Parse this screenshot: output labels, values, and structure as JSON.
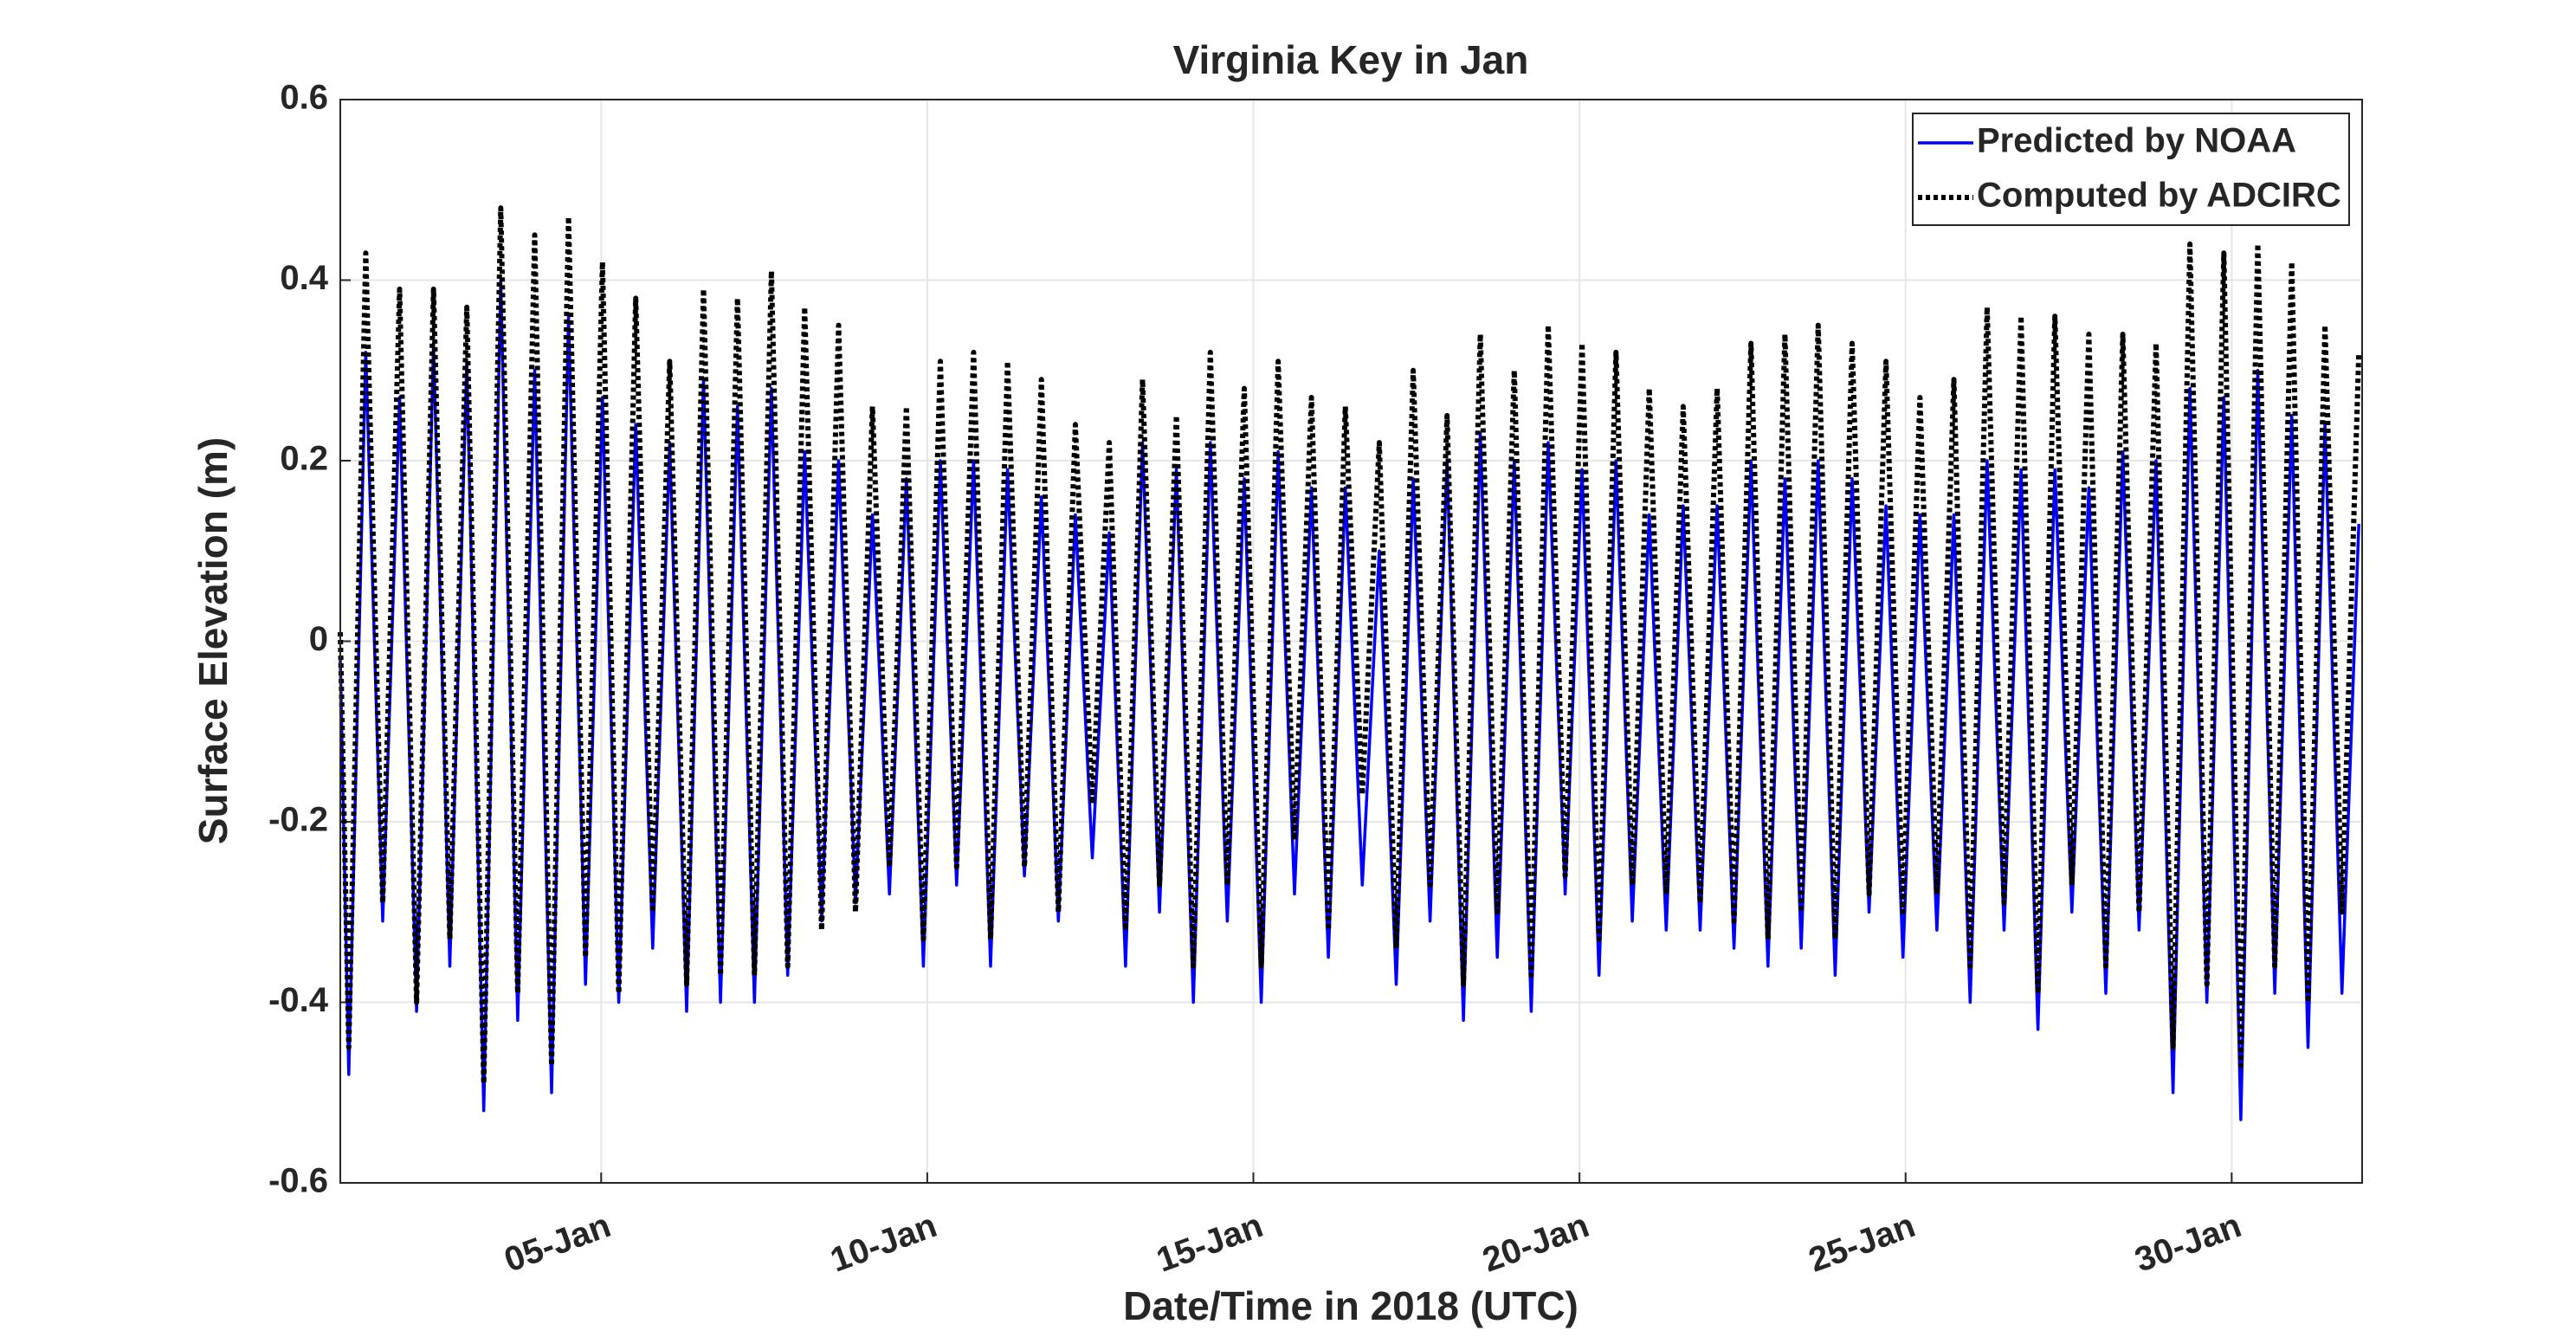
{
  "chart_data": {
    "type": "line",
    "title": "Virginia Key in Jan",
    "xlabel": "Date/Time in 2018 (UTC)",
    "ylabel": "Surface Elevation (m)",
    "xlim": [
      1,
      32
    ],
    "ylim": [
      -0.6,
      0.6
    ],
    "xticks": [
      {
        "value": 5,
        "label": "05-Jan"
      },
      {
        "value": 10,
        "label": "10-Jan"
      },
      {
        "value": 15,
        "label": "15-Jan"
      },
      {
        "value": 20,
        "label": "20-Jan"
      },
      {
        "value": 25,
        "label": "25-Jan"
      },
      {
        "value": 30,
        "label": "30-Jan"
      }
    ],
    "yticks": [
      -0.6,
      -0.4,
      -0.2,
      0,
      0.2,
      0.4,
      0.6
    ],
    "grid": true,
    "legend": "northeast",
    "x": [
      1.0,
      1.13,
      1.39,
      1.65,
      1.91,
      2.17,
      2.43,
      2.68,
      2.94,
      3.2,
      3.46,
      3.72,
      3.98,
      4.24,
      4.5,
      4.76,
      5.02,
      5.27,
      5.53,
      5.79,
      6.05,
      6.31,
      6.57,
      6.83,
      7.09,
      7.35,
      7.61,
      7.86,
      8.12,
      8.38,
      8.64,
      8.9,
      9.16,
      9.42,
      9.68,
      9.94,
      10.2,
      10.45,
      10.71,
      10.97,
      11.23,
      11.49,
      11.75,
      12.01,
      12.27,
      12.53,
      12.79,
      13.04,
      13.3,
      13.56,
      13.82,
      14.08,
      14.34,
      14.6,
      14.86,
      15.12,
      15.38,
      15.63,
      15.89,
      16.15,
      16.41,
      16.67,
      16.93,
      17.19,
      17.45,
      17.71,
      17.97,
      18.22,
      18.48,
      18.74,
      19.0,
      19.26,
      19.52,
      19.78,
      20.04,
      20.3,
      20.56,
      20.81,
      21.07,
      21.33,
      21.59,
      21.85,
      22.11,
      22.37,
      22.63,
      22.89,
      23.15,
      23.4,
      23.66,
      23.92,
      24.18,
      24.44,
      24.7,
      24.96,
      25.22,
      25.48,
      25.74,
      25.99,
      26.25,
      26.51,
      26.77,
      27.03,
      27.29,
      27.55,
      27.81,
      28.07,
      28.33,
      28.58,
      28.84,
      29.1,
      29.36,
      29.62,
      29.88,
      30.14,
      30.4,
      30.66,
      30.92,
      31.17,
      31.43,
      31.69,
      31.95
    ],
    "series": [
      {
        "name": "Predicted by NOAA",
        "color": "#0000ff",
        "style": "solid",
        "values": [
          -0.02,
          -0.48,
          0.32,
          -0.31,
          0.27,
          -0.41,
          0.33,
          -0.36,
          0.31,
          -0.52,
          0.4,
          -0.42,
          0.3,
          -0.5,
          0.36,
          -0.38,
          0.27,
          -0.4,
          0.24,
          -0.34,
          0.22,
          -0.41,
          0.29,
          -0.4,
          0.26,
          -0.4,
          0.28,
          -0.37,
          0.21,
          -0.31,
          0.2,
          -0.29,
          0.14,
          -0.28,
          0.18,
          -0.36,
          0.2,
          -0.27,
          0.2,
          -0.36,
          0.19,
          -0.26,
          0.16,
          -0.31,
          0.14,
          -0.24,
          0.12,
          -0.36,
          0.22,
          -0.3,
          0.19,
          -0.4,
          0.22,
          -0.31,
          0.18,
          -0.4,
          0.21,
          -0.28,
          0.17,
          -0.35,
          0.17,
          -0.27,
          0.1,
          -0.38,
          0.18,
          -0.31,
          0.2,
          -0.42,
          0.23,
          -0.35,
          0.2,
          -0.41,
          0.22,
          -0.28,
          0.19,
          -0.37,
          0.2,
          -0.31,
          0.14,
          -0.32,
          0.15,
          -0.32,
          0.15,
          -0.34,
          0.2,
          -0.36,
          0.18,
          -0.34,
          0.2,
          -0.37,
          0.18,
          -0.3,
          0.15,
          -0.35,
          0.14,
          -0.32,
          0.14,
          -0.4,
          0.2,
          -0.32,
          0.19,
          -0.43,
          0.19,
          -0.3,
          0.17,
          -0.39,
          0.21,
          -0.32,
          0.2,
          -0.5,
          0.28,
          -0.4,
          0.27,
          -0.53,
          0.3,
          -0.39,
          0.25,
          -0.45,
          0.24,
          -0.39,
          0.13
        ]
      },
      {
        "name": "Computed by ADCIRC",
        "color": "#000000",
        "style": "dotted",
        "values": [
          0.01,
          -0.45,
          0.43,
          -0.29,
          0.39,
          -0.4,
          0.39,
          -0.33,
          0.37,
          -0.49,
          0.48,
          -0.39,
          0.45,
          -0.47,
          0.47,
          -0.35,
          0.42,
          -0.39,
          0.38,
          -0.3,
          0.31,
          -0.38,
          0.39,
          -0.37,
          0.38,
          -0.37,
          0.41,
          -0.36,
          0.37,
          -0.32,
          0.35,
          -0.3,
          0.26,
          -0.25,
          0.26,
          -0.33,
          0.31,
          -0.25,
          0.32,
          -0.33,
          0.31,
          -0.25,
          0.29,
          -0.3,
          0.24,
          -0.18,
          0.22,
          -0.32,
          0.29,
          -0.27,
          0.25,
          -0.36,
          0.32,
          -0.27,
          0.28,
          -0.36,
          0.31,
          -0.22,
          0.27,
          -0.32,
          0.26,
          -0.17,
          0.22,
          -0.34,
          0.3,
          -0.27,
          0.25,
          -0.38,
          0.34,
          -0.3,
          0.3,
          -0.37,
          0.35,
          -0.26,
          0.33,
          -0.33,
          0.32,
          -0.27,
          0.28,
          -0.28,
          0.26,
          -0.29,
          0.28,
          -0.31,
          0.33,
          -0.33,
          0.34,
          -0.3,
          0.35,
          -0.33,
          0.33,
          -0.28,
          0.31,
          -0.3,
          0.27,
          -0.28,
          0.29,
          -0.36,
          0.37,
          -0.29,
          0.36,
          -0.39,
          0.36,
          -0.27,
          0.34,
          -0.36,
          0.34,
          -0.3,
          0.33,
          -0.45,
          0.44,
          -0.38,
          0.43,
          -0.47,
          0.44,
          -0.36,
          0.42,
          -0.4,
          0.35,
          -0.3,
          0.32
        ]
      }
    ]
  }
}
